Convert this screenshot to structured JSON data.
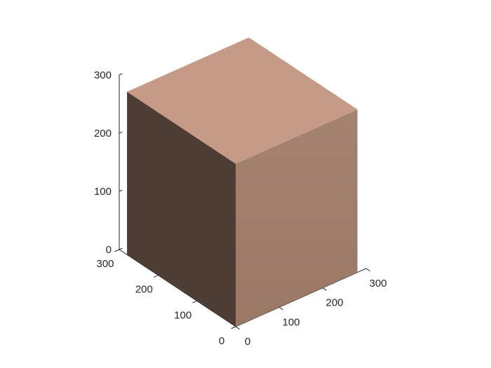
{
  "chart_data": {
    "type": "surface3d",
    "title": "",
    "xlabel": "",
    "ylabel": "",
    "zlabel": "",
    "grid": false,
    "object": "cube",
    "cube": {
      "x": [
        0,
        280
      ],
      "y": [
        0,
        280
      ],
      "z": [
        0,
        280
      ]
    },
    "axes": {
      "x": {
        "range": [
          0,
          300
        ],
        "ticks": [
          0,
          100,
          200,
          300
        ],
        "tick_labels": [
          "0",
          "100",
          "200",
          "300"
        ]
      },
      "y": {
        "range": [
          0,
          300
        ],
        "ticks": [
          0,
          100,
          200,
          300
        ],
        "tick_labels": [
          "0",
          "100",
          "200",
          "300"
        ]
      },
      "z": {
        "range": [
          0,
          300
        ],
        "ticks": [
          0,
          100,
          200,
          300
        ],
        "tick_labels": [
          "0",
          "100",
          "200",
          "300"
        ]
      }
    },
    "colors": {
      "top_face": "#c69b85",
      "right_face_top": "#a68271",
      "right_face_bottom": "#9b7866",
      "left_face": "#4e3d34",
      "axis": "#262626"
    }
  }
}
